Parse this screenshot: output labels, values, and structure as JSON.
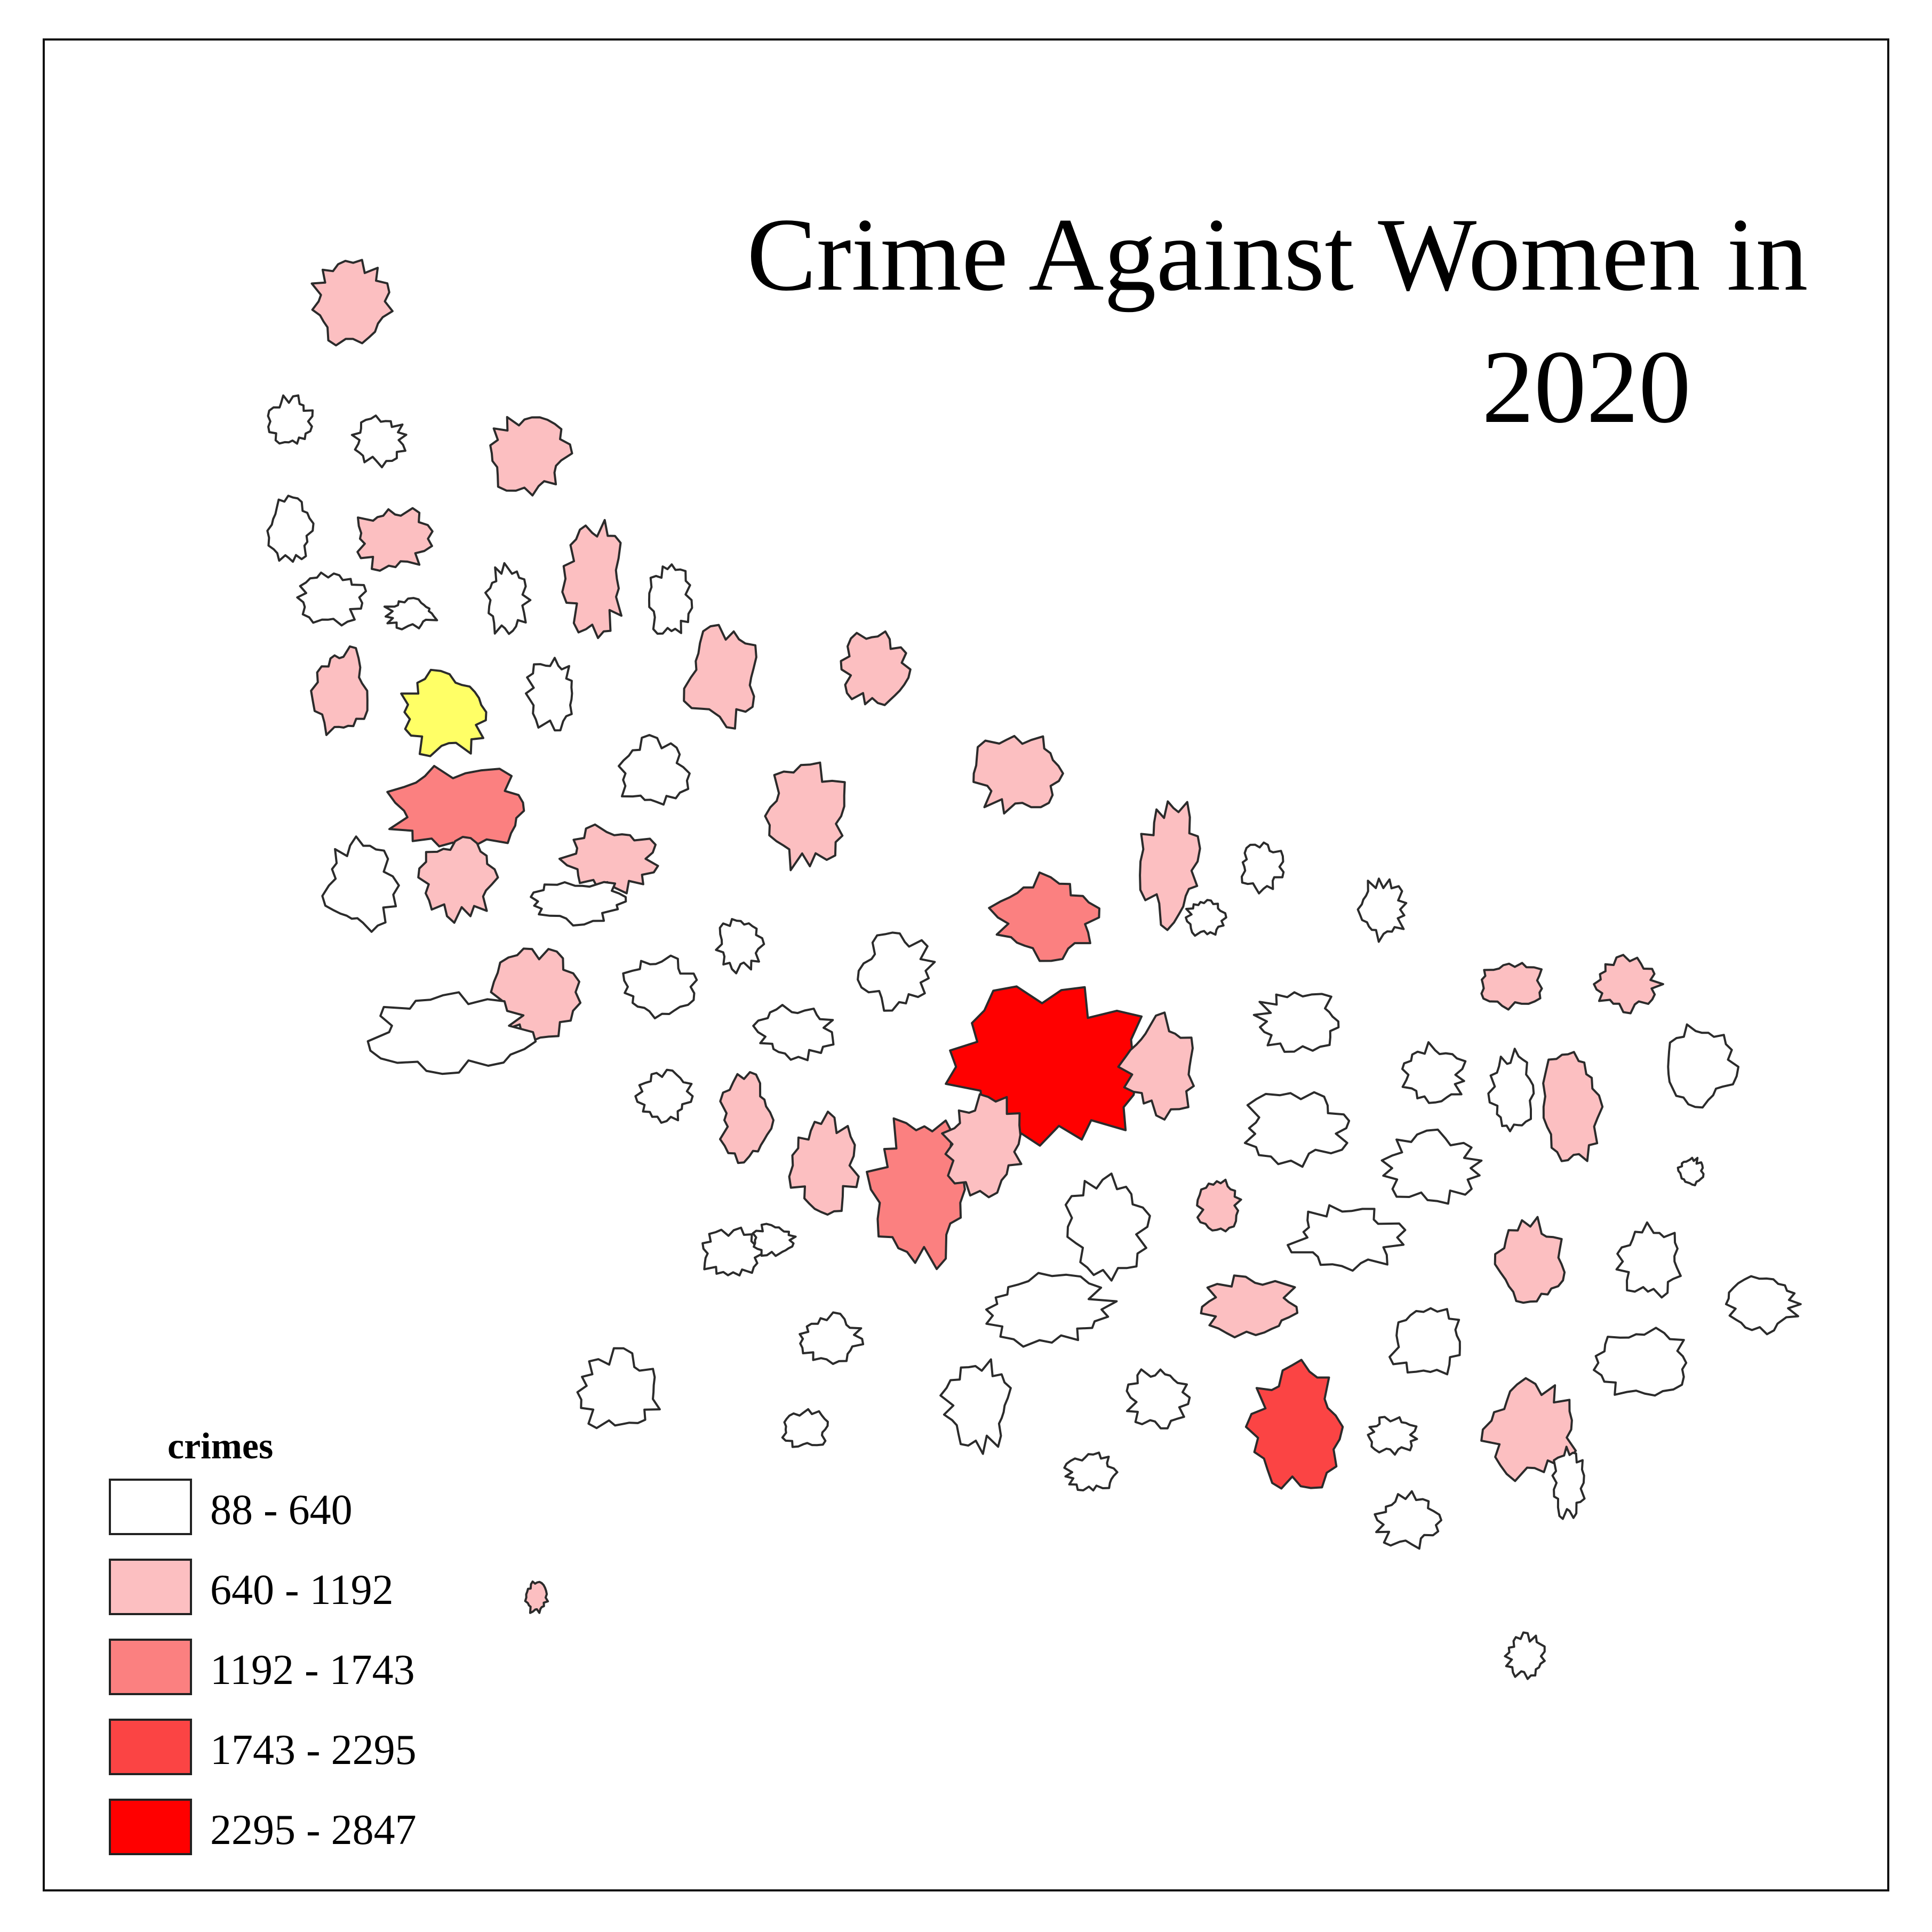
{
  "title": {
    "line1": "Crime Against Women in",
    "line2": "2020"
  },
  "legend": {
    "title": "crimes",
    "classes": [
      {
        "label": "88 - 640",
        "color": "#ffffff"
      },
      {
        "label": "640 - 1192",
        "color": "#fcbfc1"
      },
      {
        "label": "1192 - 1743",
        "color": "#fb8080"
      },
      {
        "label": "1743 - 2295",
        "color": "#fb4444"
      },
      {
        "label": "2295 - 2847",
        "color": "#ff0000"
      }
    ]
  },
  "colors": {
    "no_data": "#ffff66",
    "outline": "#2b2b2b"
  },
  "map": {
    "districts": [
      {
        "class": 1
      },
      {
        "class": 0
      },
      {
        "class": 0
      },
      {
        "class": 1
      },
      {
        "class": 0
      },
      {
        "class": 1
      },
      {
        "class": 0
      },
      {
        "class": 0
      },
      {
        "class": 1
      },
      {
        "class": 0
      },
      {
        "class": 0
      },
      {
        "class": 1
      },
      {
        "class": null
      },
      {
        "class": 0
      },
      {
        "class": 1
      },
      {
        "class": 1
      },
      {
        "class": 0
      },
      {
        "class": 1
      },
      {
        "class": 2
      },
      {
        "class": 1
      },
      {
        "class": 1
      },
      {
        "class": 0
      },
      {
        "class": 1
      },
      {
        "class": 0
      },
      {
        "class": 1
      },
      {
        "class": 0
      },
      {
        "class": 0
      },
      {
        "class": 0
      },
      {
        "class": 2
      },
      {
        "class": 1
      },
      {
        "class": 0
      },
      {
        "class": 0
      },
      {
        "class": 1
      },
      {
        "class": 1
      },
      {
        "class": 0
      },
      {
        "class": 0
      },
      {
        "class": 0
      },
      {
        "class": 4
      },
      {
        "class": 1
      },
      {
        "class": 0
      },
      {
        "class": 0
      },
      {
        "class": 1
      },
      {
        "class": 2
      },
      {
        "class": 1
      },
      {
        "class": 1
      },
      {
        "class": 0
      },
      {
        "class": 1
      },
      {
        "class": 0
      },
      {
        "class": 0
      },
      {
        "class": 0
      },
      {
        "class": 0
      },
      {
        "class": 1
      },
      {
        "class": 0
      },
      {
        "class": 0
      },
      {
        "class": 0
      },
      {
        "class": 0
      },
      {
        "class": 1
      },
      {
        "class": 0
      },
      {
        "class": 0
      },
      {
        "class": 0
      },
      {
        "class": 1
      },
      {
        "class": 0
      },
      {
        "class": 0
      },
      {
        "class": 0
      },
      {
        "class": 0
      },
      {
        "class": 3
      },
      {
        "class": 0
      },
      {
        "class": 1
      },
      {
        "class": 0
      },
      {
        "class": 0
      },
      {
        "class": 0
      },
      {
        "class": 0
      },
      {
        "class": 0
      },
      {
        "class": 1
      },
      {
        "class": 0
      },
      {
        "class": 0
      },
      {
        "class": 0
      }
    ]
  }
}
